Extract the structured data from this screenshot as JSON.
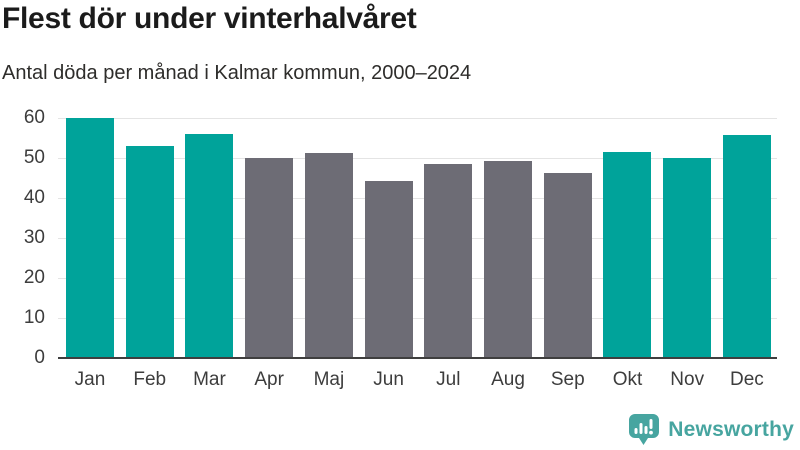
{
  "header": {
    "title": "Flest dör under vinterhalvåret",
    "subtitle": "Antal döda per månad i Kalmar kommun, 2000–2024"
  },
  "chart_data": {
    "type": "bar",
    "title": "Flest dör under vinterhalvåret",
    "subtitle": "Antal döda per månad i Kalmar kommun, 2000–2024",
    "categories": [
      "Jan",
      "Feb",
      "Mar",
      "Apr",
      "Maj",
      "Jun",
      "Jul",
      "Aug",
      "Sep",
      "Okt",
      "Nov",
      "Dec"
    ],
    "values": [
      60.1,
      52.9,
      56.1,
      50.0,
      51.2,
      44.2,
      48.6,
      49.3,
      46.3,
      51.6,
      49.9,
      55.8
    ],
    "groups": [
      "winter",
      "winter",
      "winter",
      "summer",
      "summer",
      "summer",
      "summer",
      "summer",
      "summer",
      "winter",
      "winter",
      "winter"
    ],
    "group_colors": {
      "winter": "#00a39a",
      "summer": "#6d6c75"
    },
    "xlabel": "",
    "ylabel": "",
    "ylim": [
      0,
      60
    ],
    "yticks": [
      0,
      10,
      20,
      30,
      40,
      50,
      60
    ],
    "grid": true,
    "legend": "none",
    "gridline_color": "#e4e4e4",
    "axis_line_color": "#3f3f3f",
    "tick_label_color": "#3d3d3d"
  },
  "footer": {
    "brand": "Newsworthy",
    "brand_color": "#47a5a0",
    "logo_icon": "newsworthy-badge-barchart-exclamation"
  }
}
